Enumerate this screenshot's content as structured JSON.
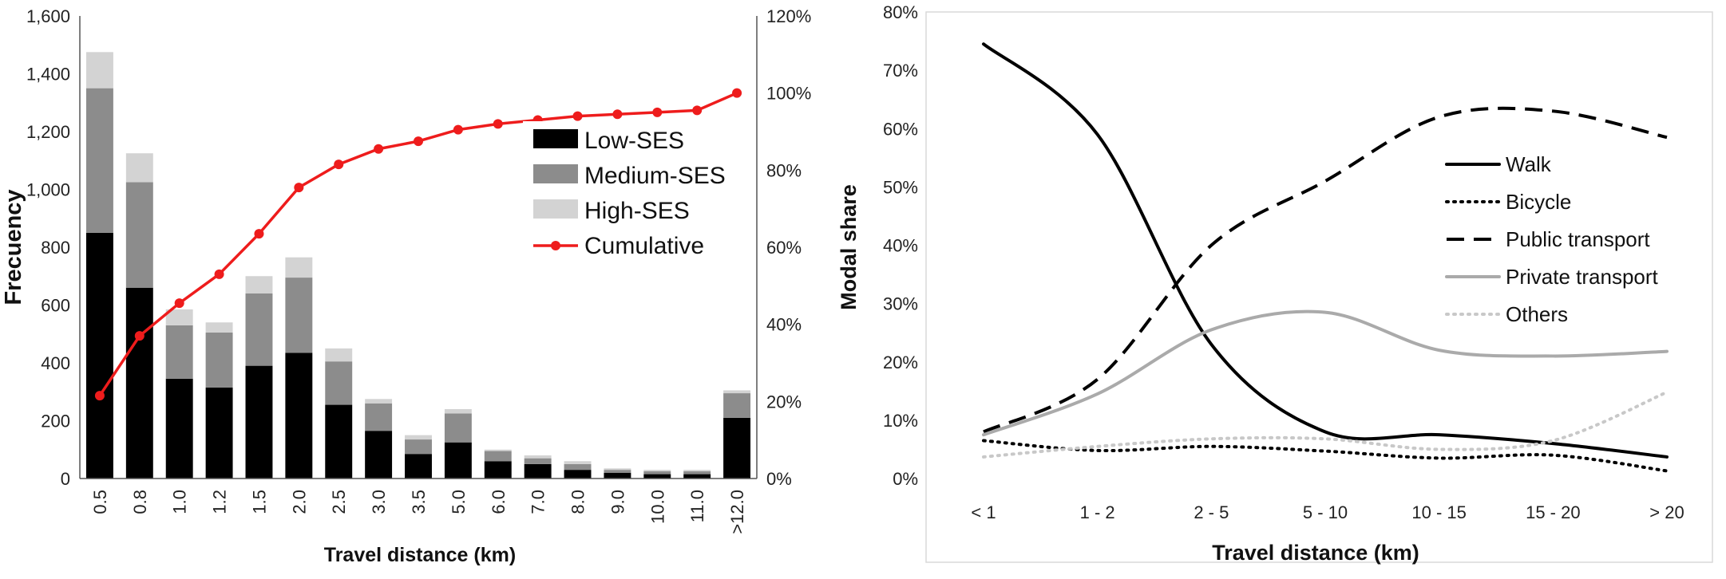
{
  "chart_data": [
    {
      "type": "bar",
      "subtype": "stacked-bar-with-cumulative-line",
      "categories": [
        "0.5",
        "0.8",
        "1.0",
        "1.2",
        "1.5",
        "2.0",
        "2.5",
        "3.0",
        "3.5",
        "5.0",
        "6.0",
        "7.0",
        "8.0",
        "9.0",
        "10.0",
        "11.0",
        ">12.0"
      ],
      "series": [
        {
          "name": "Low-SES",
          "color": "#000000",
          "values": [
            850,
            660,
            345,
            315,
            390,
            435,
            255,
            165,
            85,
            125,
            60,
            50,
            30,
            20,
            15,
            15,
            210
          ]
        },
        {
          "name": "Medium-SES",
          "color": "#8c8c8c",
          "values": [
            500,
            365,
            185,
            190,
            250,
            260,
            150,
            95,
            50,
            100,
            35,
            20,
            20,
            10,
            10,
            10,
            85
          ]
        },
        {
          "name": "High-SES",
          "color": "#d3d3d3",
          "values": [
            125,
            100,
            55,
            35,
            60,
            70,
            45,
            15,
            15,
            15,
            5,
            10,
            10,
            5,
            5,
            5,
            10
          ]
        }
      ],
      "cumulative": {
        "name": "Cumulative",
        "color": "#ee1c1c",
        "values": [
          21.5,
          37,
          45.5,
          53,
          63.5,
          75.5,
          81.5,
          85.5,
          87.5,
          90.5,
          92,
          93,
          94,
          94.5,
          95,
          95.5,
          100
        ]
      },
      "xlabel": "Travel distance (km)",
      "ylabel": "Frecuency",
      "ylim": [
        0,
        1600
      ],
      "yticks": [
        "0",
        "200",
        "400",
        "600",
        "800",
        "1,000",
        "1,200",
        "1,400",
        "1,600"
      ],
      "y2lim": [
        0,
        120
      ],
      "y2ticks": [
        "0%",
        "20%",
        "40%",
        "60%",
        "80%",
        "100%",
        "120%"
      ],
      "legend": [
        "Low-SES",
        "Medium-SES",
        "High-SES",
        "Cumulative"
      ],
      "legend_position": "right",
      "grid": false
    },
    {
      "type": "line",
      "categories": [
        "< 1",
        "1 - 2",
        "2 - 5",
        "5 - 10",
        "10 - 15",
        "15 - 20",
        "> 20"
      ],
      "series": [
        {
          "name": "Walk",
          "color": "#000000",
          "style": "solid",
          "values": [
            74.5,
            59,
            23,
            8,
            7.5,
            6,
            3.7
          ]
        },
        {
          "name": "Bicycle",
          "color": "#000000",
          "style": "dotted",
          "values": [
            6.5,
            4.8,
            5.5,
            4.7,
            3.5,
            4,
            1.3
          ]
        },
        {
          "name": "Public transport",
          "color": "#000000",
          "style": "dashed",
          "values": [
            8,
            17,
            40,
            51,
            62,
            63,
            58.5
          ]
        },
        {
          "name": "Private transport",
          "color": "#aaaaaa",
          "style": "solid",
          "values": [
            7.5,
            14.5,
            25.5,
            28.5,
            22,
            21,
            21.8
          ]
        },
        {
          "name": "Others",
          "color": "#c8c8c8",
          "style": "dotted",
          "values": [
            3.7,
            5.5,
            6.8,
            6.8,
            5,
            6.5,
            14.8
          ]
        }
      ],
      "xlabel": "Travel distance (km)",
      "ylabel": "Modal share",
      "ylim": [
        0,
        80
      ],
      "yticks": [
        "0%",
        "10%",
        "20%",
        "30%",
        "40%",
        "50%",
        "60%",
        "70%",
        "80%"
      ],
      "legend": [
        "Walk",
        "Bicycle",
        "Public transport",
        "Private transport",
        "Others"
      ],
      "legend_position": "right",
      "grid": false
    }
  ]
}
